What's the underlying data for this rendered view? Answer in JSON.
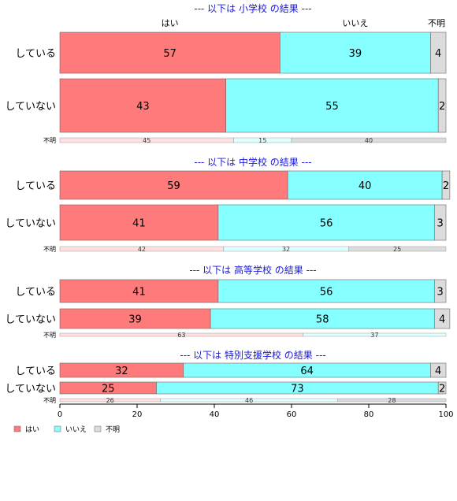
{
  "chart_data": {
    "type": "bar",
    "orientation": "horizontal-stacked-100",
    "column_labels": [
      "はい",
      "いいえ",
      "不明"
    ],
    "legend": {
      "position": "bottom-left",
      "entries": [
        "はい",
        "いいえ",
        "不明"
      ]
    },
    "colors": {
      "yes": "#ff7a7a",
      "no": "#85ffff",
      "unknown": "#dcdcdc",
      "title": "#1a1ad6"
    },
    "xlim": [
      0,
      100
    ],
    "xticks": [
      "0",
      "20",
      "40",
      "60",
      "80",
      "100"
    ],
    "panels": [
      {
        "title": "--- 以下は 小学校 の結果 ---",
        "rows": [
          {
            "label": "している",
            "values": [
              57,
              39,
              4
            ]
          },
          {
            "label": "していない",
            "values": [
              43,
              55,
              2
            ]
          }
        ],
        "unknown_row": {
          "label": "不明",
          "values": [
            45,
            15,
            40
          ]
        }
      },
      {
        "title": "--- 以下は 中学校 の結果 ---",
        "rows": [
          {
            "label": "している",
            "values": [
              59,
              40,
              2
            ]
          },
          {
            "label": "していない",
            "values": [
              41,
              56,
              3
            ]
          }
        ],
        "unknown_row": {
          "label": "不明",
          "values": [
            42,
            32,
            25
          ]
        }
      },
      {
        "title": "--- 以下は 高等学校 の結果 ---",
        "rows": [
          {
            "label": "している",
            "values": [
              41,
              56,
              3
            ]
          },
          {
            "label": "していない",
            "values": [
              39,
              58,
              4
            ]
          }
        ],
        "unknown_row": {
          "label": "不明",
          "values": [
            63,
            37,
            0
          ]
        }
      },
      {
        "title": "--- 以下は 特別支援学校 の結果 ---",
        "rows": [
          {
            "label": "している",
            "values": [
              32,
              64,
              4
            ]
          },
          {
            "label": "していない",
            "values": [
              25,
              73,
              2
            ]
          }
        ],
        "unknown_row": {
          "label": "不明",
          "values": [
            26,
            46,
            28
          ]
        }
      }
    ]
  }
}
